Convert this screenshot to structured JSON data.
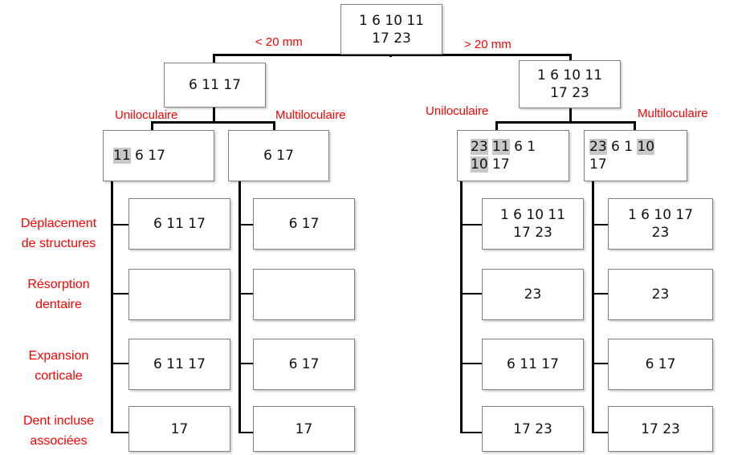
{
  "root": {
    "text": "1 6 10 11\n17 23"
  },
  "split_labels": {
    "less": "< 20 mm",
    "more": "> 20 mm"
  },
  "small": {
    "text": "6 11 17",
    "label_uni": "Uniloculaire",
    "label_multi": "Multiloculaire",
    "uni": {
      "parts": [
        {
          "t": "11",
          "hl": true
        },
        {
          "t": " 6 17",
          "hl": false
        }
      ],
      "rows": [
        "6 11 17",
        "",
        "6 11 17",
        "17"
      ]
    },
    "multi": {
      "text": "6 17",
      "rows": [
        "6 17",
        "",
        "6 17",
        "17"
      ]
    }
  },
  "large": {
    "text": "1 6 10 11\n17 23",
    "label_uni": "Uniloculaire",
    "label_multi": "Multiloculaire",
    "uni": {
      "parts": [
        {
          "t": "23",
          "hl": true
        },
        {
          "t": " ",
          "hl": false
        },
        {
          "t": "11",
          "hl": true
        },
        {
          "t": " 6 1\n",
          "hl": false
        },
        {
          "t": "10",
          "hl": true
        },
        {
          "t": " 17",
          "hl": false
        }
      ],
      "rows": [
        "1 6 10 11\n17 23",
        "23",
        "6 11 17",
        "17 23"
      ]
    },
    "multi": {
      "parts": [
        {
          "t": "23",
          "hl": true
        },
        {
          "t": " 6 1 ",
          "hl": false
        },
        {
          "t": "10",
          "hl": true
        },
        {
          "t": "\n17",
          "hl": false
        }
      ],
      "rows": [
        "1 6 10 17\n23",
        "23",
        "6 17",
        "17 23"
      ]
    }
  },
  "criteria": [
    "Déplacement\nde structures",
    "Résorption\ndentaire",
    "Expansion\ncorticale",
    "Dent incluse\nassociées"
  ],
  "colors": {
    "label": "#ff0000",
    "highlight": "#c8c8c8",
    "line": "#000000"
  }
}
